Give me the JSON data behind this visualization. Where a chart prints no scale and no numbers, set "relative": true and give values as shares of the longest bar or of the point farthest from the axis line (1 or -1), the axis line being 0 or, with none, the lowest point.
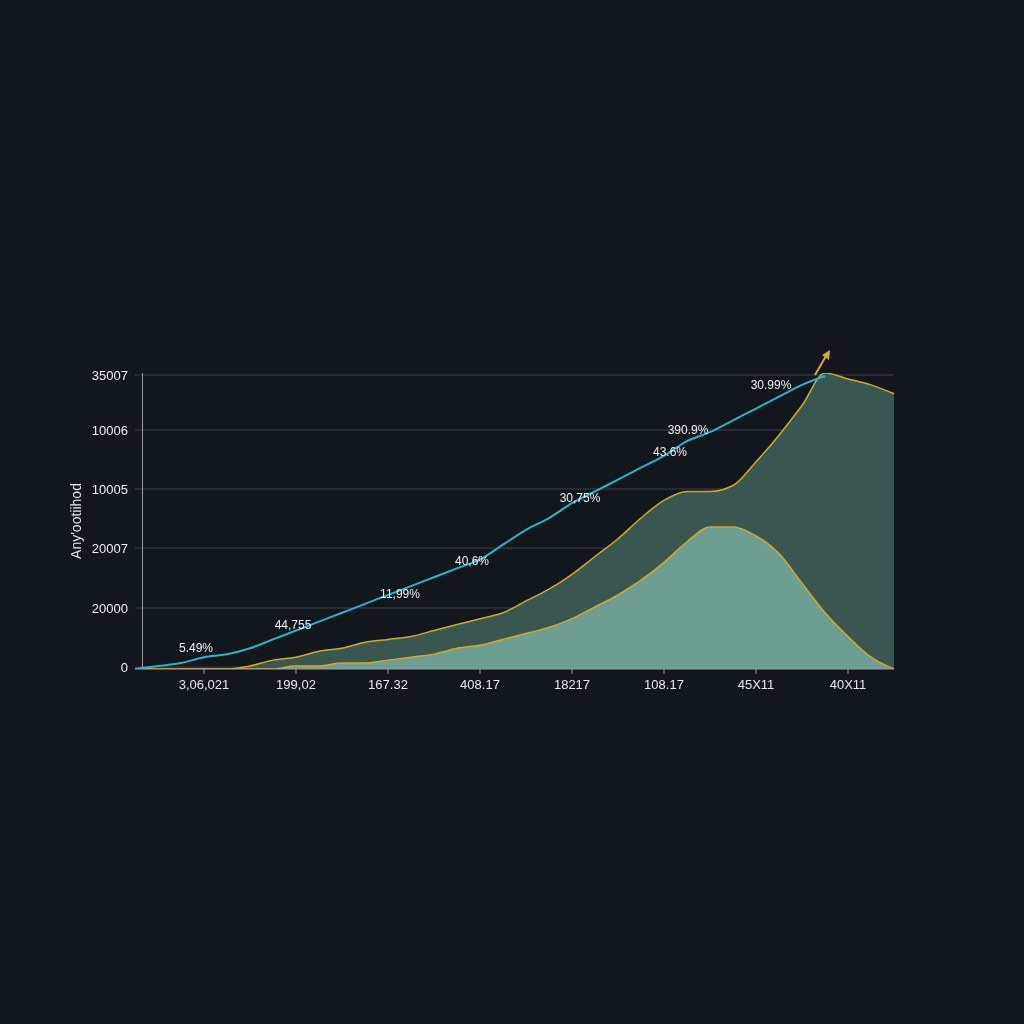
{
  "chart_data": {
    "type": "area",
    "relative": true,
    "ylabel": "Any'ootiihod",
    "categories": [
      null,
      null,
      null,
      "3,06,021",
      null,
      null,
      null,
      "199,02",
      null,
      null,
      null,
      "167.32",
      null,
      null,
      null,
      "408.17",
      null,
      null,
      null,
      "18217",
      null,
      null,
      null,
      "108.17",
      null,
      null,
      null,
      "45X11",
      null,
      null,
      null,
      "40X11",
      null,
      null
    ],
    "grid": "y",
    "legend": false,
    "series": [
      {
        "color": "#3a5650",
        "values": [
          0,
          0,
          0,
          0,
          0,
          0.01,
          0.03,
          0.04,
          0.06,
          0.07,
          0.09,
          0.1,
          0.11,
          0.13,
          0.15,
          0.17,
          0.19,
          0.23,
          0.27,
          0.32,
          0.38,
          0.44,
          0.51,
          0.57,
          0.6,
          0.6,
          0.62,
          0.7,
          0.79,
          0.89,
          1,
          0.98,
          0.96,
          0.93
        ]
      },
      {
        "color": "#6e9e92",
        "values": [
          0,
          0,
          0,
          0,
          0,
          0,
          0,
          0.01,
          0.01,
          0.02,
          0.02,
          0.03,
          0.04,
          0.05,
          0.07,
          0.08,
          0.1,
          0.12,
          0.14,
          0.17,
          0.21,
          0.25,
          0.3,
          0.36,
          0.43,
          0.48,
          0.48,
          0.45,
          0.39,
          0.29,
          0.19,
          0.11,
          0.04,
          0
        ]
      },
      {
        "type": "line",
        "color": "#2bb3cc",
        "values": [
          0,
          0.01,
          0.02,
          0.04,
          0.05,
          0.07,
          0.1,
          0.13,
          0.16,
          0.19,
          0.22,
          0.25,
          0.28,
          0.31,
          0.34,
          0.37,
          0.42,
          0.47,
          0.51,
          0.56,
          0.6,
          0.64,
          0.68,
          0.72,
          0.77,
          0.8,
          0.84,
          0.88,
          0.92,
          0.96,
          0.99,
          null,
          null,
          null
        ]
      }
    ],
    "annotations": [
      "35007",
      "10006",
      "10005",
      "20007",
      "20000",
      "0",
      "5.49%",
      "44,755",
      "11,99%",
      "40,6%",
      "30,75%",
      "43.6%",
      "390.9%",
      "30.99%"
    ]
  }
}
